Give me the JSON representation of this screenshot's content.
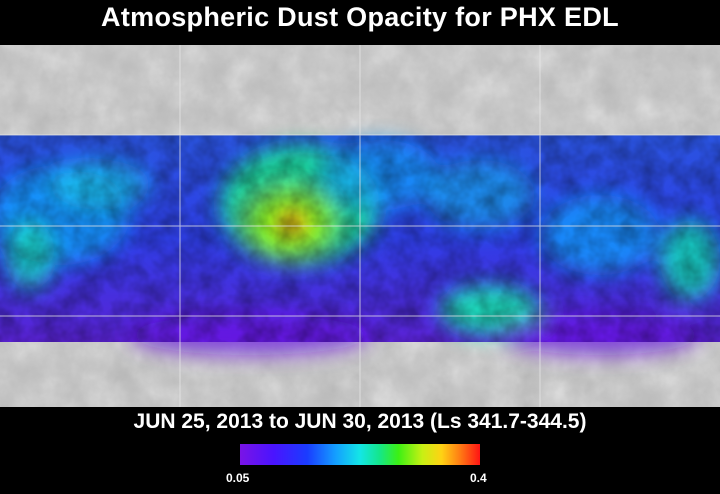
{
  "title": "Atmospheric Dust Opacity for PHX EDL",
  "subtitle": "JUN 25, 2013 to JUN 30, 2013 (Ls 341.7-344.5)",
  "colorbar": {
    "min_label": "0.05",
    "max_label": "0.4",
    "min_value": 0.05,
    "max_value": 0.4,
    "stops": [
      "#7a14e6",
      "#4a14ff",
      "#1a3cff",
      "#14a0ff",
      "#14e6e6",
      "#14e68c",
      "#3cf014",
      "#c8f014",
      "#ffd214",
      "#ff7814",
      "#ff1414"
    ]
  }
}
